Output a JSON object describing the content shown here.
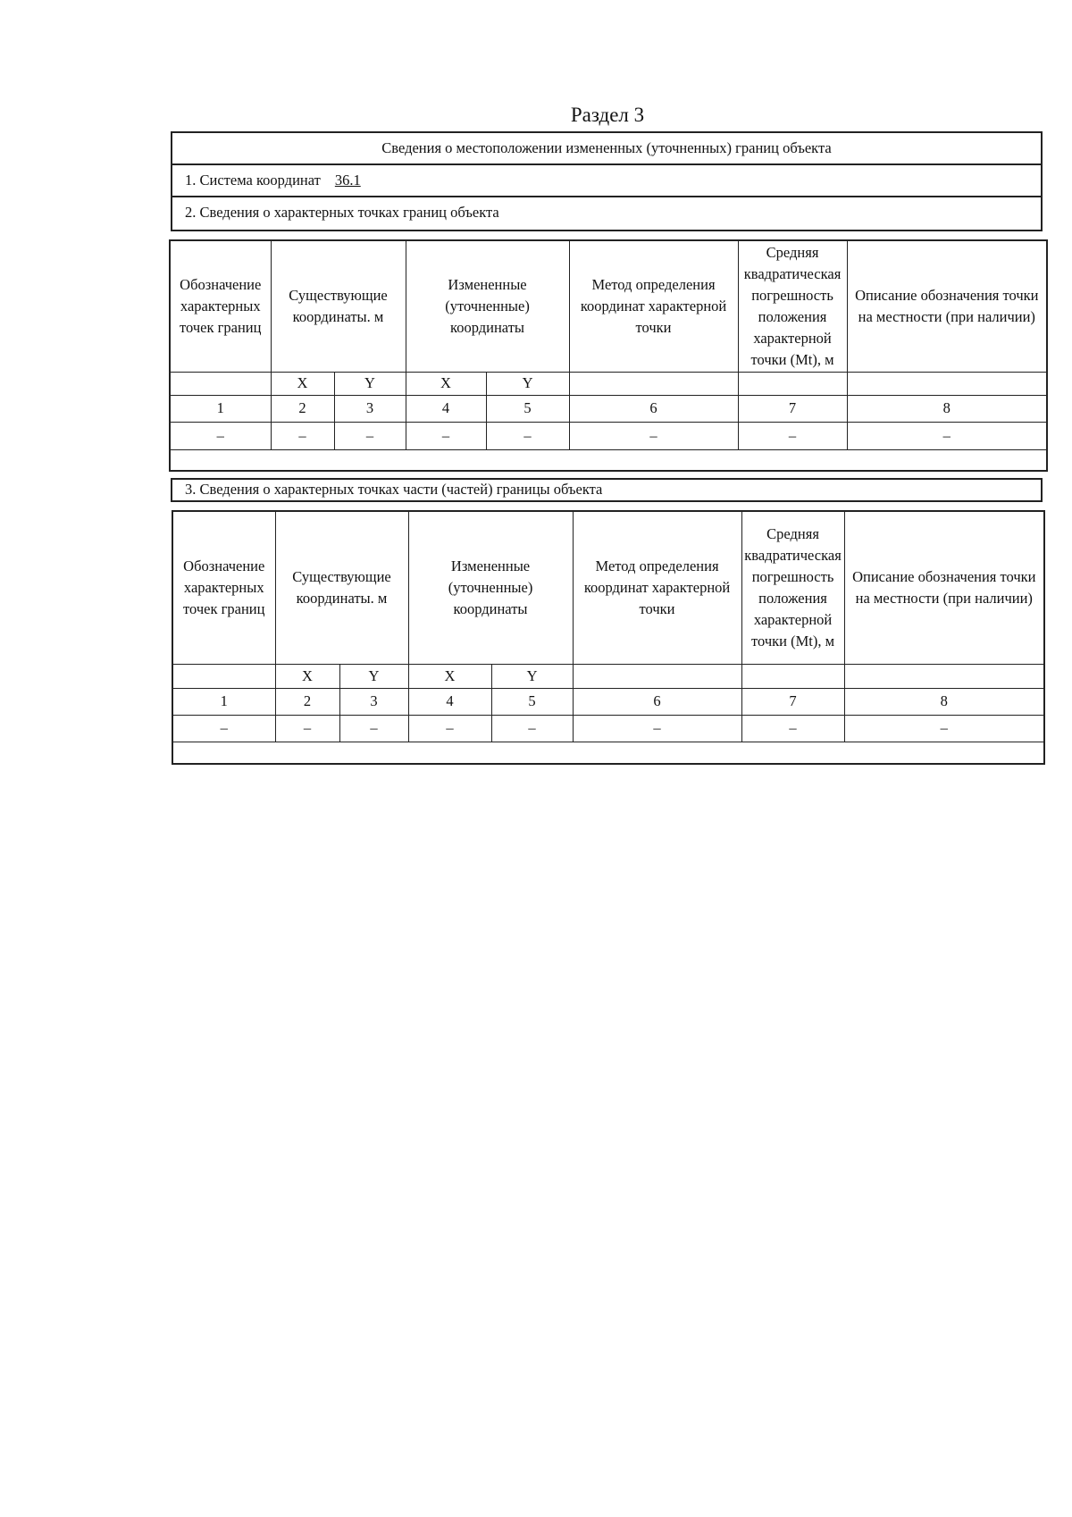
{
  "section_title": "Раздел 3",
  "header_box": {
    "title": "Сведения о местоположении измененных (уточненных) границ объекта",
    "coord_system_label": "1. Система координат",
    "coord_system_value": "36.1",
    "subsection2_title": "2. Сведения о характерных точках границ объекта"
  },
  "subsection3_title": "3. Сведения о характерных точках части (частей) границы объекта",
  "table1": {
    "headers": [
      "Обозначение характерных точек границ",
      "Существующие координаты. м",
      "Измененные (уточненные) координаты",
      "Метод определения координат характерной точки",
      "Средняя квадратическая погрешность положения характерной точки (Mt), м",
      "Описание обозначения точки на местности (при наличии)"
    ],
    "xy": [
      "X",
      "Y",
      "X",
      "Y"
    ],
    "numbers": [
      "1",
      "2",
      "3",
      "4",
      "5",
      "6",
      "7",
      "8"
    ],
    "row": [
      "–",
      "–",
      "–",
      "–",
      "–",
      "–",
      "–",
      "–"
    ]
  },
  "table2": {
    "headers": [
      "Обозначение характерных точек границ",
      "Существующие координаты. м",
      "Измененные (уточненные) координаты",
      "Метод определения координат характерной точки",
      "Средняя квадратическая погрешность положения характерной точки (Mt), м",
      "Описание обозначения точки на местности (при наличии)"
    ],
    "xy": [
      "X",
      "Y",
      "X",
      "Y"
    ],
    "numbers": [
      "1",
      "2",
      "3",
      "4",
      "5",
      "6",
      "7",
      "8"
    ],
    "row": [
      "–",
      "–",
      "–",
      "–",
      "–",
      "–",
      "–",
      "–"
    ]
  }
}
